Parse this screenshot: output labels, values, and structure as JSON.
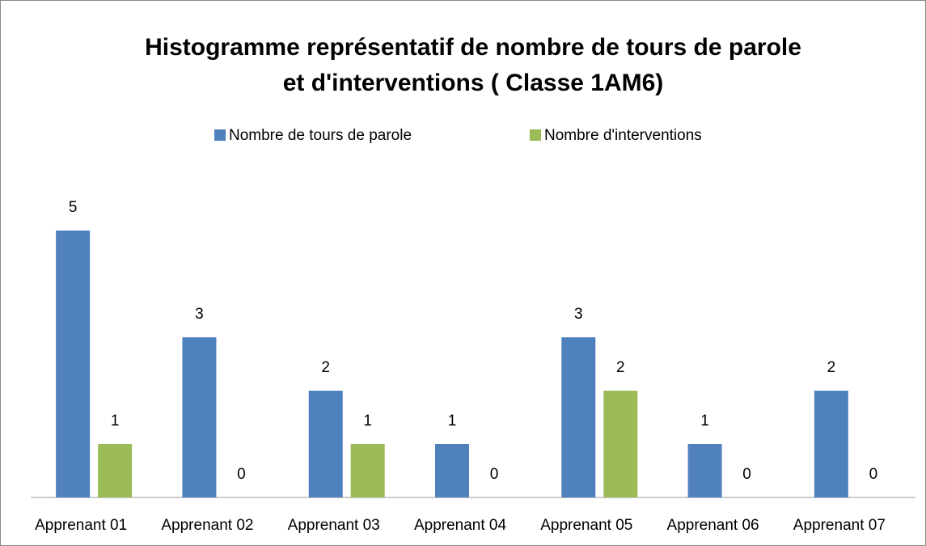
{
  "chart_data": {
    "type": "bar",
    "title": [
      "Histogramme représentatif de nombre de tours de parole",
      "et d'interventions ( Classe 1AM6)"
    ],
    "categories": [
      "Apprenant 01",
      "Apprenant 02",
      "Apprenant 03",
      "Apprenant 04",
      "Apprenant 05",
      "Apprenant 06",
      "Apprenant 07"
    ],
    "series": [
      {
        "name": "Nombre de tours de parole",
        "color": "#4f81bd",
        "values": [
          5,
          3,
          2,
          1,
          3,
          1,
          2
        ]
      },
      {
        "name": "Nombre d'interventions",
        "color": "#9bbb59",
        "values": [
          1,
          0,
          1,
          0,
          2,
          0,
          0
        ]
      }
    ],
    "ylim": [
      0,
      5
    ],
    "legend": "top"
  }
}
